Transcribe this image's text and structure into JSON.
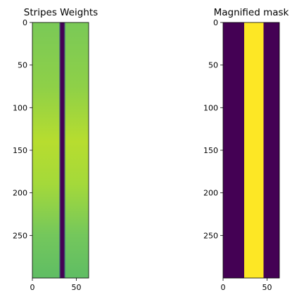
{
  "chart_data": [
    {
      "type": "heatmap",
      "title": "Stripes Weights",
      "colormap": "viridis",
      "xlim": [
        0,
        64
      ],
      "ylim": [
        300,
        0
      ],
      "xticks": [
        0,
        50
      ],
      "yticks": [
        0,
        50,
        100,
        150,
        200,
        250
      ],
      "stripe": {
        "center_x": 34,
        "width": 7,
        "color_low": "#440154"
      },
      "background_gradient": [
        {
          "y": 0,
          "color": "#7ac957"
        },
        {
          "y": 75,
          "color": "#8ed048"
        },
        {
          "y": 140,
          "color": "#b7dd2f"
        },
        {
          "y": 190,
          "color": "#a4d93a"
        },
        {
          "y": 250,
          "color": "#74c75c"
        },
        {
          "y": 300,
          "color": "#5fbd64"
        }
      ]
    },
    {
      "type": "heatmap",
      "title": "Magnified mask",
      "colormap": "viridis",
      "xlim": [
        0,
        64
      ],
      "ylim": [
        300,
        0
      ],
      "xticks": [
        0,
        50
      ],
      "yticks": [
        0,
        50,
        100,
        150,
        200,
        250
      ],
      "mask": {
        "x_start": 24,
        "x_end": 46,
        "low_color": "#440154",
        "high_color": "#fde725"
      }
    }
  ]
}
